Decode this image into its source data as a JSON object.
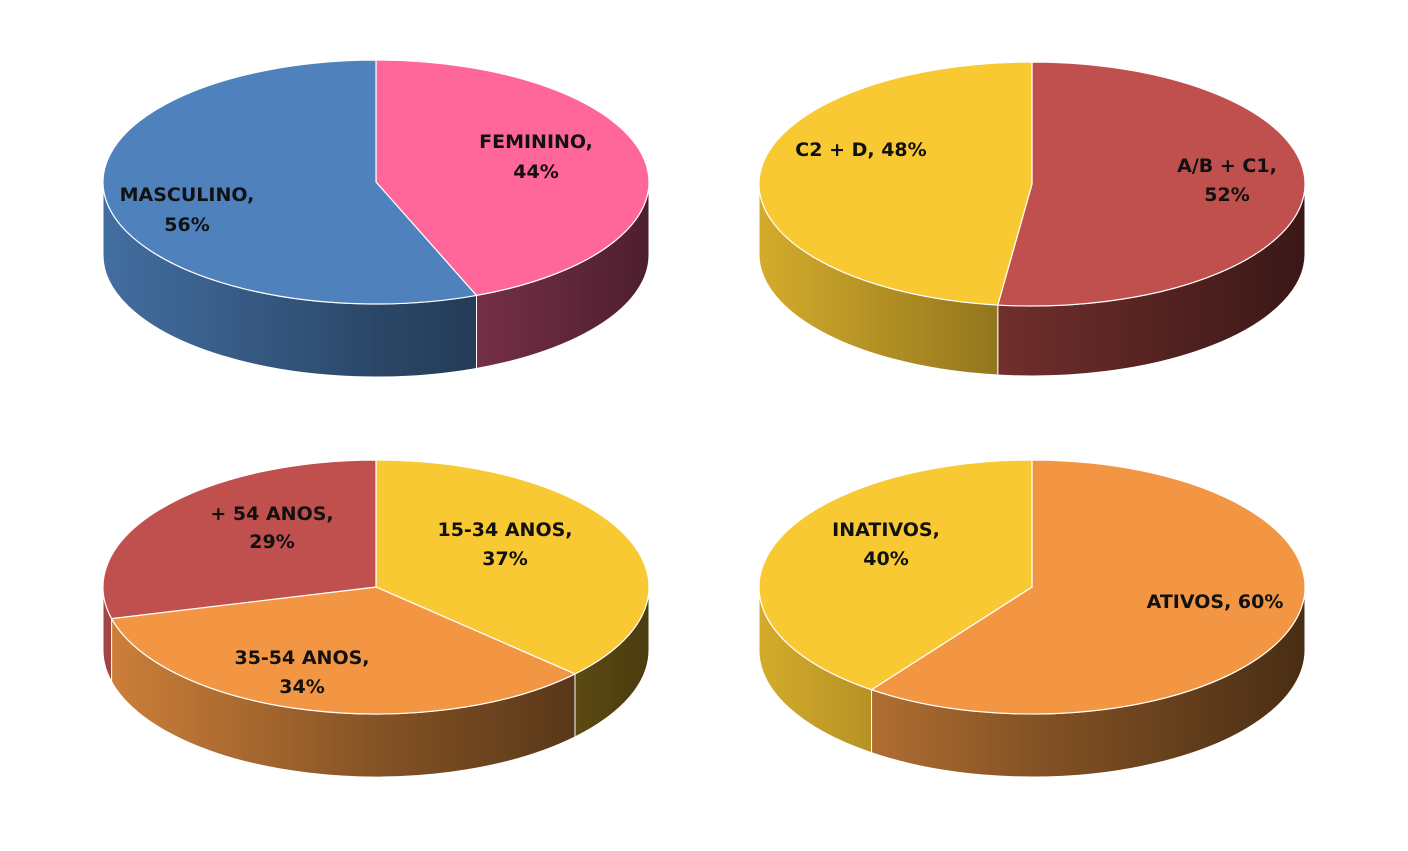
{
  "chart_data": [
    {
      "type": "pie",
      "title": "",
      "slices": [
        {
          "label": "FEMININO",
          "value": 44,
          "color": "#FF6699"
        },
        {
          "label": "MASCULINO",
          "value": 56,
          "color": "#4F81BD"
        }
      ]
    },
    {
      "type": "pie",
      "title": "",
      "slices": [
        {
          "label": "A/B + C1",
          "value": 52,
          "color": "#C0504D"
        },
        {
          "label": "C2 + D",
          "value": 48,
          "color": "#F9C933"
        }
      ]
    },
    {
      "type": "pie",
      "title": "",
      "slices": [
        {
          "label": "15-34 ANOS",
          "value": 37,
          "color": "#F9C933"
        },
        {
          "label": "35-54 ANOS",
          "value": 34,
          "color": "#F29644"
        },
        {
          "label": "+ 54 ANOS",
          "value": 29,
          "color": "#C0504D"
        }
      ]
    },
    {
      "type": "pie",
      "title": "",
      "slices": [
        {
          "label": "ATIVOS",
          "value": 60,
          "color": "#F29644"
        },
        {
          "label": "INATIVOS",
          "value": 40,
          "color": "#F9C933"
        }
      ]
    }
  ]
}
